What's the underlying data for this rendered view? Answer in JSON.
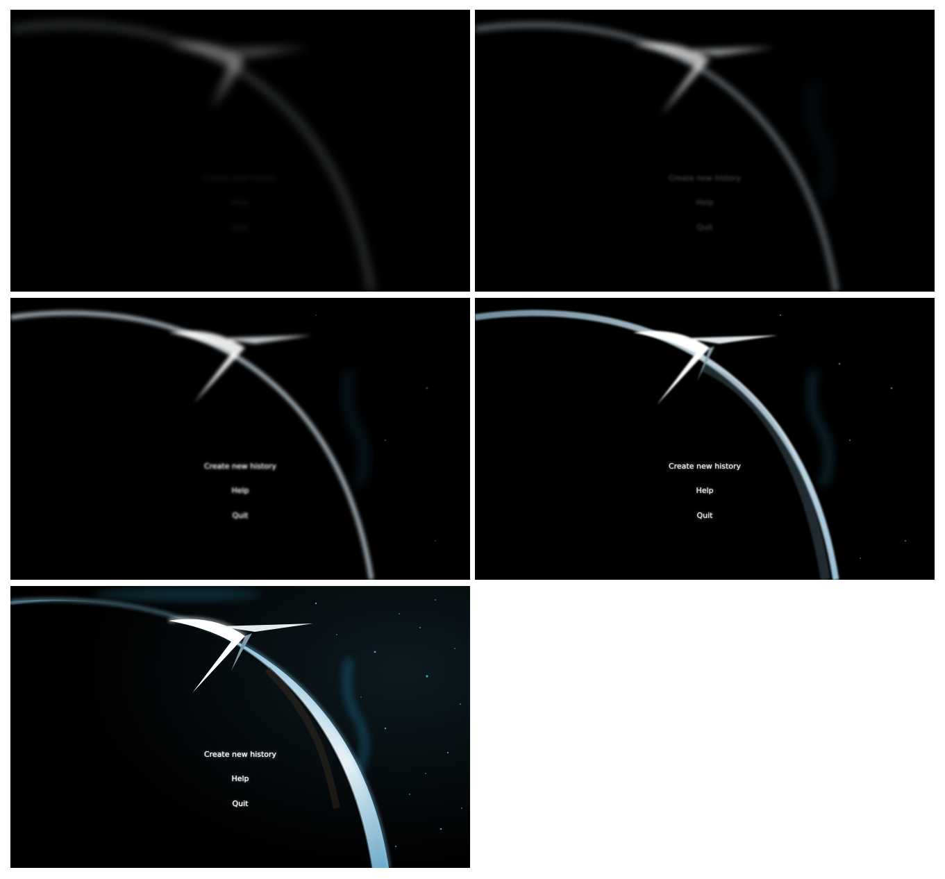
{
  "screens": [
    {
      "state": "fade-in-1",
      "menu": {
        "create_label": "Create new history",
        "help_label": "Help",
        "quit_label": "Quit"
      }
    },
    {
      "state": "fade-in-2",
      "menu": {
        "create_label": "Create new history",
        "help_label": "Help",
        "quit_label": "Quit"
      }
    },
    {
      "state": "fade-in-3",
      "menu": {
        "create_label": "Create new history",
        "help_label": "Help",
        "quit_label": "Quit"
      }
    },
    {
      "state": "fade-in-4",
      "menu": {
        "create_label": "Create new history",
        "help_label": "Help",
        "quit_label": "Quit"
      }
    },
    {
      "state": "final",
      "menu": {
        "create_label": "Create new history",
        "help_label": "Help",
        "quit_label": "Quit"
      }
    }
  ],
  "colors": {
    "background": "#000000",
    "planet_rim": "#cfe2ee",
    "atmosphere": "#7fb4d6",
    "logo": "#ffffff",
    "nebula": "#16384a",
    "menu_text": "#ffffff"
  },
  "icons": {
    "logo": "game-logo-icon",
    "planet": "planet-horizon"
  }
}
